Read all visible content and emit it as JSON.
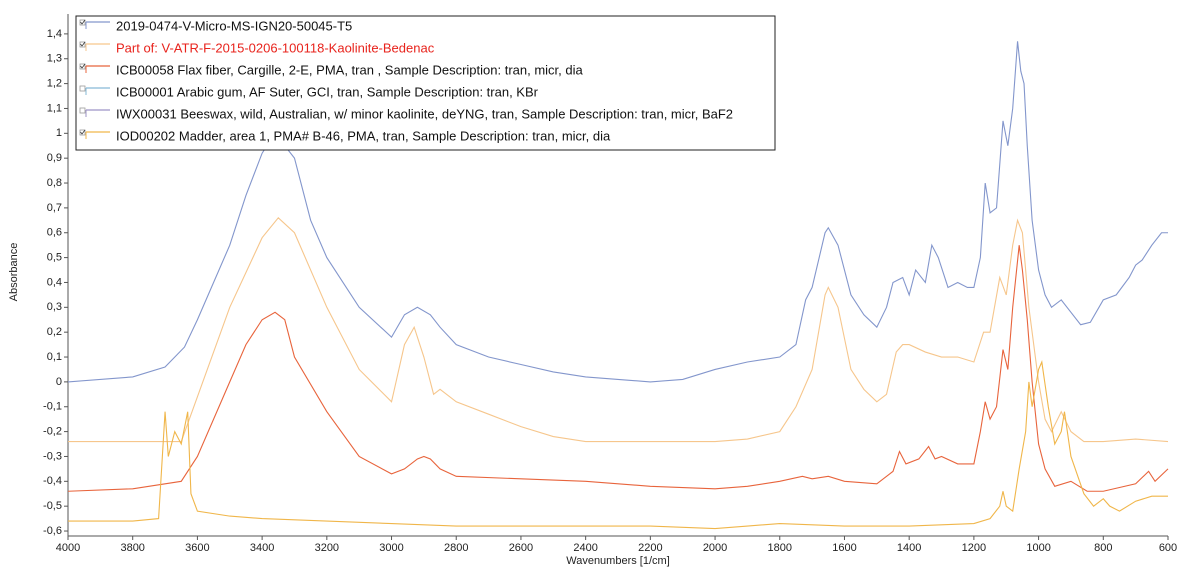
{
  "chart_data": {
    "type": "line",
    "xlabel": "Wavenumbers [1/cm]",
    "ylabel": "Absorbance",
    "xlim": [
      4000,
      600
    ],
    "ylim": [
      -0.62,
      1.48
    ],
    "xticks": [
      4000,
      3800,
      3600,
      3400,
      3200,
      3000,
      2800,
      2600,
      2400,
      2200,
      2000,
      1800,
      1600,
      1400,
      1200,
      1000,
      800,
      600
    ],
    "yticks": [
      {
        "value": -0.6,
        "label": "-0,6"
      },
      {
        "value": -0.5,
        "label": "-0,5"
      },
      {
        "value": -0.4,
        "label": "-0,4"
      },
      {
        "value": -0.3,
        "label": "-0,3"
      },
      {
        "value": -0.2,
        "label": "-0,2"
      },
      {
        "value": -0.1,
        "label": "-0,1"
      },
      0,
      {
        "value": 0.1,
        "label": "0,1"
      },
      {
        "value": 0.2,
        "label": "0,2"
      },
      {
        "value": 0.3,
        "label": "0,3"
      },
      {
        "value": 0.4,
        "label": "0,4"
      },
      {
        "value": 0.5,
        "label": "0,5"
      },
      {
        "value": 0.6,
        "label": "0,6"
      },
      {
        "value": 0.7,
        "label": "0,7"
      },
      {
        "value": 0.8,
        "label": "0,8"
      },
      {
        "value": 0.9,
        "label": "0,9"
      },
      1,
      {
        "value": 1.1,
        "label": "1,1"
      },
      {
        "value": 1.2,
        "label": "1,2"
      },
      {
        "value": 1.3,
        "label": "1,3"
      },
      {
        "value": 1.4,
        "label": "1,4"
      }
    ],
    "legend_position": "upper left",
    "series": [
      {
        "name": "2019-0474-V-Micro-MS-IGN20-50045-T5",
        "color": "#8396cc",
        "checked": true,
        "x": [
          4000,
          3800,
          3700,
          3640,
          3600,
          3500,
          3450,
          3400,
          3360,
          3300,
          3250,
          3200,
          3100,
          3000,
          2960,
          2920,
          2880,
          2850,
          2800,
          2700,
          2600,
          2500,
          2400,
          2300,
          2200,
          2100,
          2000,
          1900,
          1800,
          1750,
          1720,
          1700,
          1660,
          1650,
          1620,
          1580,
          1540,
          1500,
          1470,
          1450,
          1420,
          1400,
          1380,
          1350,
          1330,
          1310,
          1280,
          1250,
          1220,
          1200,
          1180,
          1165,
          1150,
          1130,
          1110,
          1095,
          1080,
          1065,
          1055,
          1045,
          1035,
          1020,
          1000,
          980,
          960,
          930,
          900,
          870,
          840,
          800,
          760,
          720,
          700,
          680,
          650,
          620,
          600
        ],
        "values": [
          0.0,
          0.02,
          0.06,
          0.14,
          0.25,
          0.55,
          0.75,
          0.92,
          1.0,
          0.9,
          0.65,
          0.5,
          0.3,
          0.18,
          0.27,
          0.3,
          0.27,
          0.22,
          0.15,
          0.1,
          0.07,
          0.04,
          0.02,
          0.01,
          0.0,
          0.01,
          0.05,
          0.08,
          0.1,
          0.15,
          0.33,
          0.38,
          0.6,
          0.62,
          0.55,
          0.35,
          0.27,
          0.22,
          0.3,
          0.4,
          0.42,
          0.35,
          0.45,
          0.4,
          0.55,
          0.5,
          0.38,
          0.4,
          0.38,
          0.38,
          0.5,
          0.8,
          0.68,
          0.7,
          1.05,
          0.95,
          1.1,
          1.37,
          1.25,
          1.2,
          0.95,
          0.65,
          0.45,
          0.35,
          0.3,
          0.33,
          0.28,
          0.23,
          0.24,
          0.33,
          0.35,
          0.42,
          0.47,
          0.49,
          0.55,
          0.6,
          0.6
        ]
      },
      {
        "name": "Part of: V-ATR-F-2015-0206-100118-Kaolinite-Bedenac",
        "color": "#f6c68c",
        "checked": true,
        "highlighted": true,
        "x": [
          4000,
          3650,
          3500,
          3400,
          3350,
          3300,
          3200,
          3100,
          3000,
          2960,
          2930,
          2900,
          2870,
          2850,
          2800,
          2700,
          2600,
          2500,
          2400,
          2200,
          2000,
          1900,
          1800,
          1750,
          1700,
          1660,
          1650,
          1620,
          1580,
          1540,
          1500,
          1470,
          1440,
          1420,
          1400,
          1350,
          1300,
          1250,
          1200,
          1170,
          1150,
          1120,
          1100,
          1080,
          1065,
          1050,
          1030,
          1000,
          980,
          960,
          930,
          900,
          860,
          800,
          700,
          600
        ],
        "values": [
          -0.24,
          -0.24,
          0.3,
          0.58,
          0.66,
          0.6,
          0.3,
          0.05,
          -0.08,
          0.15,
          0.22,
          0.1,
          -0.05,
          -0.03,
          -0.08,
          -0.13,
          -0.18,
          -0.22,
          -0.24,
          -0.24,
          -0.24,
          -0.23,
          -0.2,
          -0.1,
          0.05,
          0.35,
          0.38,
          0.3,
          0.05,
          -0.03,
          -0.08,
          -0.05,
          0.12,
          0.15,
          0.15,
          0.12,
          0.1,
          0.1,
          0.08,
          0.2,
          0.2,
          0.42,
          0.35,
          0.55,
          0.65,
          0.6,
          0.3,
          0.0,
          -0.15,
          -0.2,
          -0.12,
          -0.2,
          -0.24,
          -0.24,
          -0.23,
          -0.24
        ]
      },
      {
        "name": "ICB00058 Flax fiber, Cargille, 2-E, PMA, tran , Sample Description: tran, micr, dia",
        "color": "#e8643c",
        "checked": true,
        "x": [
          4000,
          3800,
          3650,
          3600,
          3500,
          3450,
          3400,
          3360,
          3330,
          3300,
          3200,
          3100,
          3000,
          2960,
          2920,
          2900,
          2880,
          2850,
          2800,
          2600,
          2400,
          2200,
          2000,
          1900,
          1800,
          1730,
          1700,
          1650,
          1600,
          1500,
          1450,
          1430,
          1410,
          1370,
          1340,
          1320,
          1300,
          1250,
          1200,
          1180,
          1165,
          1150,
          1130,
          1110,
          1095,
          1080,
          1060,
          1050,
          1035,
          1020,
          1000,
          980,
          950,
          900,
          850,
          800,
          700,
          660,
          640,
          600
        ],
        "values": [
          -0.44,
          -0.43,
          -0.4,
          -0.3,
          0.0,
          0.15,
          0.25,
          0.28,
          0.25,
          0.1,
          -0.12,
          -0.3,
          -0.37,
          -0.35,
          -0.31,
          -0.3,
          -0.31,
          -0.35,
          -0.38,
          -0.39,
          -0.4,
          -0.42,
          -0.43,
          -0.42,
          -0.4,
          -0.38,
          -0.39,
          -0.38,
          -0.4,
          -0.41,
          -0.36,
          -0.28,
          -0.33,
          -0.31,
          -0.26,
          -0.31,
          -0.3,
          -0.33,
          -0.33,
          -0.2,
          -0.08,
          -0.15,
          -0.1,
          0.13,
          0.05,
          0.3,
          0.55,
          0.45,
          0.25,
          0.0,
          -0.25,
          -0.35,
          -0.42,
          -0.4,
          -0.44,
          -0.44,
          -0.41,
          -0.36,
          -0.4,
          -0.35
        ]
      },
      {
        "name": "ICB00001 Arabic gum, AF Suter, GCI, tran, Sample Description: tran, KBr",
        "color": "#86b9d6",
        "checked": false,
        "x": [],
        "values": []
      },
      {
        "name": "IWX00031 Beeswax, wild, Australian, w/ minor kaolinite, deYNG, tran, Sample Description: tran, micr, BaF2",
        "color": "#9d93c6",
        "checked": false,
        "x": [],
        "values": []
      },
      {
        "name": "IOD00202 Madder, area 1, PMA# B-46, PMA, tran, Sample Description: tran, micr, dia",
        "color": "#f0b64a",
        "checked": true,
        "x": [
          4000,
          3800,
          3720,
          3700,
          3690,
          3670,
          3650,
          3630,
          3620,
          3600,
          3500,
          3400,
          3200,
          3000,
          2800,
          2600,
          2400,
          2200,
          2000,
          1900,
          1800,
          1600,
          1400,
          1200,
          1150,
          1120,
          1110,
          1100,
          1080,
          1060,
          1040,
          1030,
          1020,
          1000,
          990,
          970,
          950,
          930,
          920,
          900,
          860,
          830,
          800,
          780,
          750,
          700,
          650,
          600
        ],
        "values": [
          -0.56,
          -0.56,
          -0.55,
          -0.12,
          -0.3,
          -0.2,
          -0.25,
          -0.12,
          -0.45,
          -0.52,
          -0.54,
          -0.55,
          -0.56,
          -0.57,
          -0.58,
          -0.58,
          -0.58,
          -0.58,
          -0.59,
          -0.58,
          -0.57,
          -0.58,
          -0.58,
          -0.57,
          -0.55,
          -0.5,
          -0.44,
          -0.5,
          -0.52,
          -0.35,
          -0.2,
          0.0,
          -0.1,
          0.05,
          0.08,
          -0.1,
          -0.25,
          -0.2,
          -0.12,
          -0.3,
          -0.45,
          -0.5,
          -0.47,
          -0.5,
          -0.52,
          -0.48,
          -0.46,
          -0.46
        ]
      }
    ]
  }
}
